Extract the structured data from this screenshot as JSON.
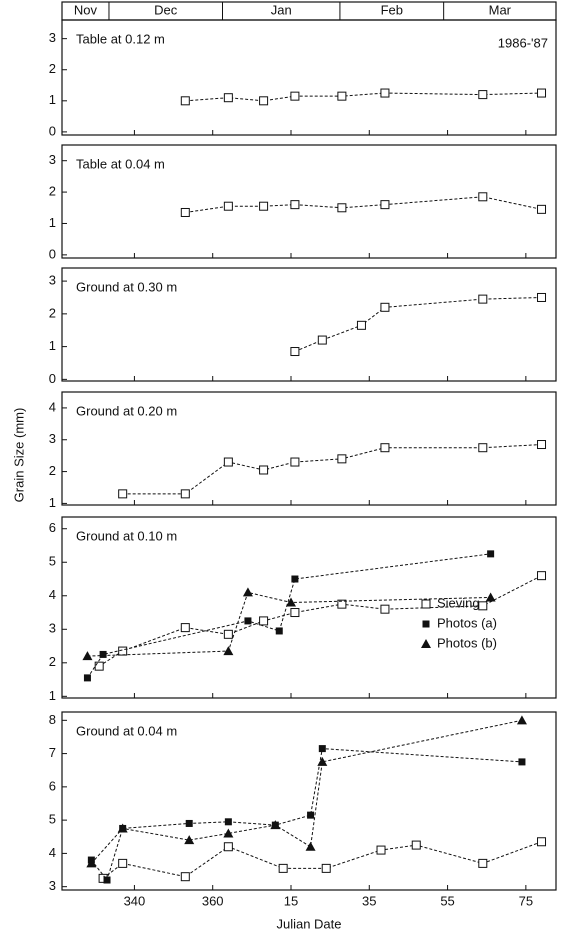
{
  "chart_data": {
    "type": "line",
    "color": "#111111",
    "x_label": "Julian Date",
    "y_label": "Grain Size (mm)",
    "annotation": "1986-'87",
    "xlim": [
      321.5,
      447.7
    ],
    "xticks": [
      340,
      360,
      {
        "value": 380,
        "label": "15"
      },
      {
        "value": 400,
        "label": "35"
      },
      {
        "value": 420,
        "label": "55"
      },
      {
        "value": 440,
        "label": "75"
      }
    ],
    "months": [
      "Nov",
      "Dec",
      "Jan",
      "Feb",
      "Mar"
    ],
    "month_edges": [
      333.5,
      362.5,
      392.5,
      419
    ],
    "legend": "right",
    "panels": [
      {
        "label": "Table at 0.12 m",
        "ylim": [
          -0.1,
          3.6
        ],
        "yticks": [
          0,
          1,
          2,
          3
        ],
        "series": [
          {
            "marker": "open-square",
            "x": [
              353,
              364,
              373,
              381,
              393,
              404,
              429,
              444
            ],
            "values": [
              1.0,
              1.1,
              1.0,
              1.15,
              1.15,
              1.25,
              1.2,
              1.25
            ]
          }
        ]
      },
      {
        "label": "Table at 0.04 m",
        "ylim": [
          -0.1,
          3.5
        ],
        "yticks": [
          0,
          1,
          2,
          3
        ],
        "series": [
          {
            "marker": "open-square",
            "x": [
              353,
              364,
              373,
              381,
              393,
              404,
              429,
              444
            ],
            "values": [
              1.35,
              1.55,
              1.55,
              1.6,
              1.5,
              1.6,
              1.85,
              1.45
            ]
          }
        ]
      },
      {
        "label": "Ground at 0.30 m",
        "ylim": [
          -0.05,
          3.4
        ],
        "yticks": [
          0,
          1,
          2,
          3
        ],
        "series": [
          {
            "marker": "open-square",
            "x": [
              381,
              388,
              398,
              404,
              429,
              444
            ],
            "values": [
              0.85,
              1.2,
              1.65,
              2.2,
              2.45,
              2.5
            ]
          }
        ]
      },
      {
        "label": "Ground at 0.20 m",
        "ylim": [
          0.95,
          4.5
        ],
        "yticks": [
          1,
          2,
          3,
          4
        ],
        "series": [
          {
            "marker": "open-square",
            "x": [
              337,
              353,
              364,
              373,
              381,
              393,
              404,
              429,
              444
            ],
            "values": [
              1.3,
              1.3,
              2.3,
              2.05,
              2.3,
              2.4,
              2.75,
              2.75,
              2.85
            ]
          }
        ]
      },
      {
        "label": "Ground at 0.10 m",
        "ylim": [
          0.95,
          6.35
        ],
        "yticks": [
          1,
          2,
          3,
          4,
          5,
          6
        ],
        "series": [
          {
            "name": "Sieving",
            "marker": "open-square",
            "x": [
              331,
              337,
              353,
              364,
              373,
              381,
              393,
              404,
              429,
              444
            ],
            "values": [
              1.9,
              2.35,
              3.05,
              2.85,
              3.25,
              3.5,
              3.75,
              3.6,
              3.7,
              4.6
            ]
          },
          {
            "name": "Photos (a)",
            "marker": "square",
            "x": [
              328,
              332,
              369,
              377,
              381,
              431
            ],
            "values": [
              1.55,
              2.25,
              3.25,
              2.95,
              4.5,
              5.25
            ]
          },
          {
            "name": "Photos (b)",
            "marker": "triangle",
            "x": [
              328,
              364,
              369,
              380,
              431
            ],
            "values": [
              2.2,
              2.35,
              4.1,
              3.8,
              3.95
            ]
          }
        ]
      },
      {
        "label": "Ground at 0.04 m",
        "ylim": [
          2.9,
          8.25
        ],
        "yticks": [
          3,
          4,
          5,
          6,
          7,
          8
        ],
        "series": [
          {
            "marker": "open-square",
            "x": [
              332,
              337,
              353,
              364,
              378,
              389,
              403,
              412,
              429,
              444
            ],
            "values": [
              3.25,
              3.7,
              3.3,
              4.2,
              3.55,
              3.55,
              4.1,
              4.25,
              3.7,
              4.35
            ]
          },
          {
            "marker": "square",
            "x": [
              329,
              333,
              337,
              354,
              364,
              376,
              385,
              388,
              439
            ],
            "values": [
              3.8,
              3.2,
              4.75,
              4.9,
              4.95,
              4.85,
              5.15,
              7.15,
              6.75
            ]
          },
          {
            "marker": "triangle",
            "x": [
              329,
              337,
              354,
              364,
              376,
              385,
              388,
              439
            ],
            "values": [
              3.7,
              4.75,
              4.4,
              4.6,
              4.85,
              4.2,
              6.75,
              8.0
            ]
          }
        ]
      }
    ]
  }
}
